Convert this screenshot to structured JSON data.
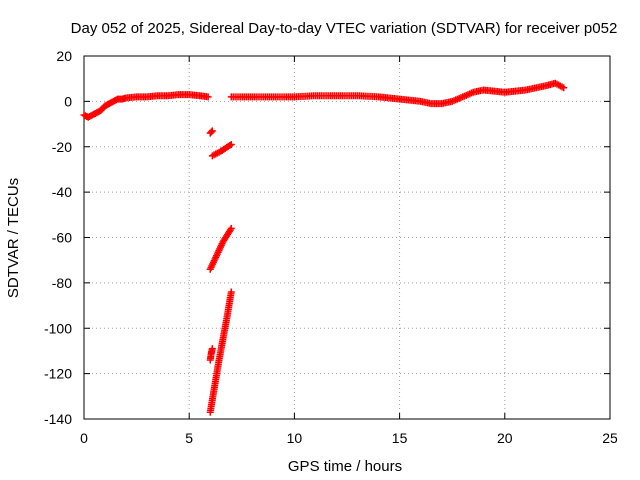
{
  "chart_data": {
    "type": "scatter",
    "title": "Day 052 of 2025, Sidereal Day-to-day VTEC variation (SDTVAR) for receiver p052",
    "xlabel": "GPS time / hours",
    "ylabel": "SDTVAR / TECUs",
    "xlim": [
      0,
      25
    ],
    "ylim": [
      -140,
      20
    ],
    "xticks": [
      0,
      5,
      10,
      15,
      20,
      25
    ],
    "yticks": [
      20,
      0,
      -20,
      -40,
      -60,
      -80,
      -100,
      -120,
      -140
    ],
    "grid": true,
    "marker": "+",
    "series": [
      {
        "name": "SDTVAR",
        "color": "#ff0000",
        "segments": [
          {
            "x": [
              0.0,
              0.2,
              0.4,
              0.6,
              0.8,
              1.0,
              1.2,
              1.4,
              1.6,
              1.8,
              2.0,
              2.5,
              3.0,
              3.5,
              4.0,
              4.5,
              5.0,
              5.5,
              5.9
            ],
            "y": [
              -6,
              -7,
              -6,
              -5,
              -4,
              -2,
              -1,
              0,
              1,
              1,
              1.5,
              2,
              2,
              2.5,
              2.5,
              3,
              3,
              2.5,
              2
            ]
          },
          {
            "x": [
              7.0,
              8.0,
              9.0,
              10.0,
              11.0,
              12.0,
              13.0,
              14.0,
              14.5,
              15.0,
              15.5,
              16.0,
              16.5,
              17.0,
              17.5,
              18.0,
              18.5,
              19.0,
              19.5,
              20.0,
              20.5,
              21.0,
              21.5,
              22.0,
              22.4,
              22.8
            ],
            "y": [
              2,
              2,
              2,
              2,
              2.5,
              2.5,
              2.5,
              2,
              1.5,
              1,
              0.5,
              0,
              -1,
              -1,
              0,
              2,
              4,
              5,
              4.5,
              4,
              4.5,
              5,
              6,
              7,
              8,
              6
            ]
          },
          {
            "x": [
              6.0,
              6.1
            ],
            "y": [
              -14,
              -13
            ]
          },
          {
            "x": [
              6.1,
              6.5,
              7.0
            ],
            "y": [
              -24,
              -22,
              -19
            ]
          },
          {
            "x": [
              6.0,
              6.3,
              6.6,
              7.0
            ],
            "y": [
              -74,
              -68,
              -62,
              -56
            ]
          },
          {
            "x": [
              6.0,
              6.05,
              6.1
            ],
            "y": [
              -114,
              -111,
              -109
            ]
          },
          {
            "x": [
              6.0,
              6.2,
              6.4,
              6.6,
              6.8,
              7.0
            ],
            "y": [
              -137,
              -126,
              -115,
              -105,
              -95,
              -84
            ]
          }
        ]
      }
    ]
  }
}
